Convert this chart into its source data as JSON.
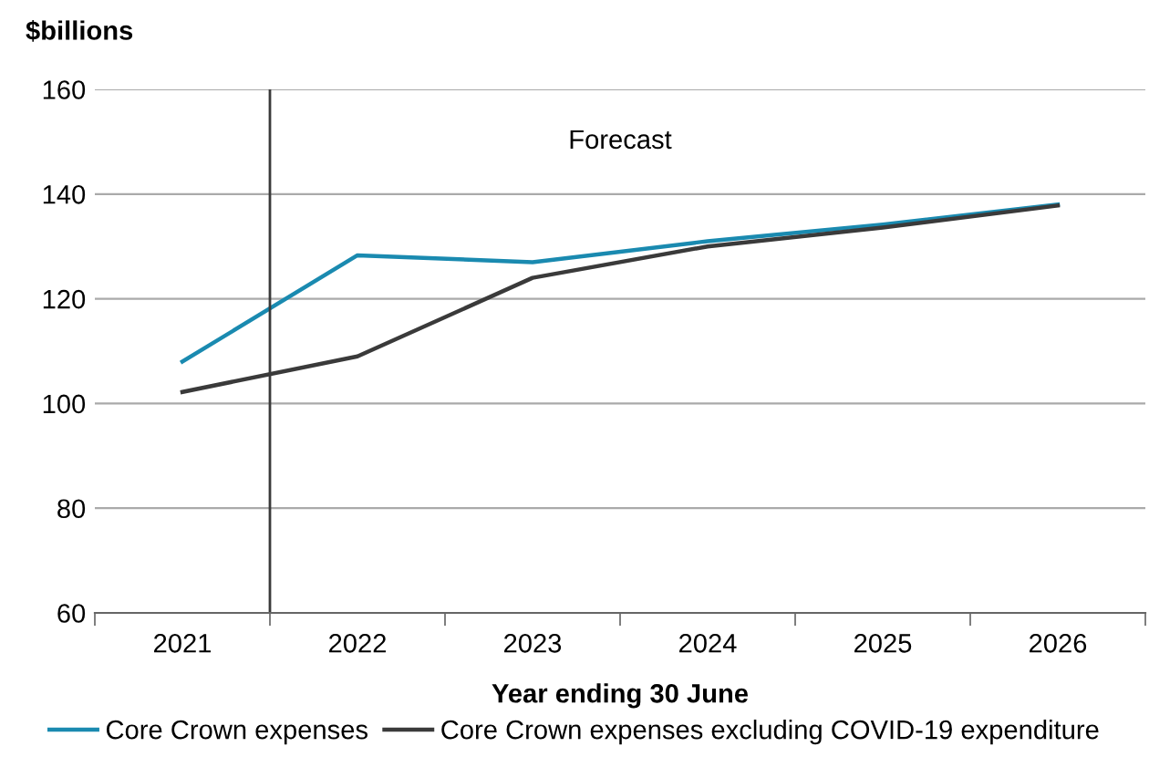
{
  "chart_data": {
    "type": "line",
    "ylabel": "$billions",
    "xlabel": "Year ending 30 June",
    "x": [
      2021,
      2022,
      2023,
      2024,
      2025,
      2026
    ],
    "series": [
      {
        "name": "Core Crown expenses",
        "color": "#1a8ab0",
        "values": [
          108,
          128.3,
          127,
          131,
          134.2,
          138
        ]
      },
      {
        "name": "Core Crown expenses excluding COVID-19 expenditure",
        "color": "#3a3a3a",
        "values": [
          102.2,
          109,
          124,
          130,
          133.6,
          137.8
        ]
      }
    ],
    "xlim": [
      2020.5,
      2026.5
    ],
    "xticks": [
      2021,
      2022,
      2023,
      2024,
      2025,
      2026
    ],
    "ylim": [
      60,
      160
    ],
    "yticks": [
      60,
      80,
      100,
      120,
      140,
      160
    ],
    "grid": "y",
    "legend": "bottom",
    "ref_lines": [
      {
        "axis": "x",
        "value": 2021.5,
        "color": "#3a3a3a"
      }
    ],
    "annotations": [
      "Forecast"
    ],
    "line_style": "solid",
    "marker": "none"
  }
}
